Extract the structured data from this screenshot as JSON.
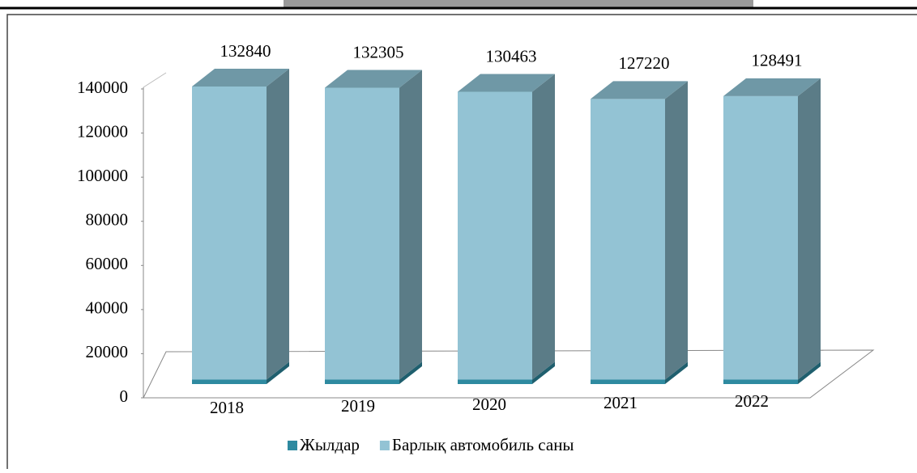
{
  "chart_data": {
    "type": "bar3d-stacked",
    "categories": [
      "2018",
      "2019",
      "2020",
      "2021",
      "2022"
    ],
    "series": [
      {
        "name": "Жылдар",
        "color": "#2e8aa0",
        "values": [
          2018,
          2019,
          2020,
          2021,
          2022
        ]
      },
      {
        "name": "Барлық автомобиль саны",
        "color": "#93c3d4",
        "values": [
          132840,
          132305,
          130463,
          127220,
          128491
        ]
      }
    ],
    "ylim": [
      0,
      140000
    ],
    "yticks": [
      0,
      20000,
      40000,
      60000,
      80000,
      100000,
      120000,
      140000
    ],
    "legend": "bottom"
  }
}
